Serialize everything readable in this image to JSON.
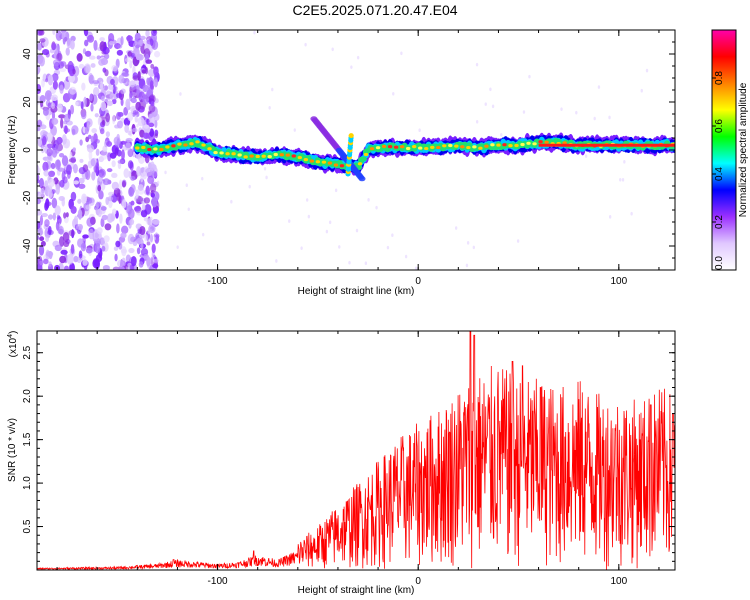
{
  "title": "C2E5.2025.071.20.47.E04",
  "chart_data": [
    {
      "type": "heatmap",
      "title": "C2E5.2025.071.20.47.E04",
      "xlabel": "Height of straight line (km)",
      "ylabel": "Frequency (Hz)",
      "xlim": [
        -190,
        128
      ],
      "ylim": [
        -50,
        50
      ],
      "xticks": [
        -100,
        0,
        100
      ],
      "yticks": [
        -40,
        -20,
        0,
        20,
        40
      ],
      "colorbar": {
        "label": "Normalized spectral amplitude",
        "range": [
          0.0,
          1.0
        ],
        "ticks": [
          "0.0",
          "0.2",
          "0.4",
          "0.6",
          "0.8"
        ],
        "colors": [
          "#ffffff",
          "#e0c8ff",
          "#9b30ff",
          "#0000ff",
          "#00ffff",
          "#00ff00",
          "#ffff00",
          "#ff8000",
          "#ff0000",
          "#ff00aa"
        ]
      },
      "ridge": {
        "x": [
          -140,
          -130,
          -120,
          -110,
          -100,
          -90,
          -80,
          -70,
          -60,
          -50,
          -40,
          -30,
          -25,
          -20,
          -10,
          0,
          10,
          20,
          30,
          40,
          50,
          60,
          70,
          80,
          90,
          100,
          110,
          120,
          128
        ],
        "y": [
          1,
          0,
          2,
          3,
          -1,
          -2,
          -3,
          -2,
          -3,
          -5,
          -6,
          -7,
          0,
          1,
          1,
          1,
          1,
          2,
          1,
          2,
          2,
          3,
          3,
          2,
          2,
          2,
          2,
          2,
          2
        ]
      },
      "diagonal_feature": {
        "x": [
          -52,
          -28
        ],
        "y": [
          13,
          -12
        ]
      },
      "broadband_noise_region": {
        "x": [
          -190,
          -140
        ],
        "y": [
          -50,
          50
        ]
      }
    },
    {
      "type": "line",
      "xlabel": "Height of straight line (km)",
      "ylabel": "SNR (10 * v/v)",
      "y_multiplier": "(x10",
      "y_multiplier_exp": "4",
      "xlim": [
        -190,
        128
      ],
      "ylim": [
        0.0,
        2.75
      ],
      "xticks": [
        -100,
        0,
        100
      ],
      "yticks": [
        "0.5",
        "1.0",
        "1.5",
        "2.0",
        "2.5"
      ],
      "series": [
        {
          "color": "#ff0000",
          "envelope_x": [
            -190,
            -150,
            -130,
            -120,
            -110,
            -100,
            -90,
            -80,
            -70,
            -60,
            -50,
            -40,
            -30,
            -20,
            -10,
            0,
            10,
            20,
            30,
            40,
            50,
            60,
            70,
            80,
            90,
            100,
            110,
            120,
            128
          ],
          "envelope_y": [
            0.02,
            0.03,
            0.06,
            0.1,
            0.08,
            0.06,
            0.08,
            0.15,
            0.1,
            0.2,
            0.3,
            0.45,
            0.6,
            0.75,
            0.9,
            1.0,
            1.1,
            1.25,
            1.35,
            1.4,
            1.3,
            1.3,
            1.25,
            1.3,
            1.2,
            1.2,
            1.15,
            1.25,
            1.2
          ],
          "peaks_x": [
            -122,
            -82,
            26,
            28,
            47,
            52,
            61,
            116,
            127
          ],
          "peaks_y": [
            0.12,
            0.22,
            2.75,
            2.7,
            2.4,
            2.35,
            2.1,
            1.9,
            1.8
          ]
        }
      ]
    }
  ]
}
